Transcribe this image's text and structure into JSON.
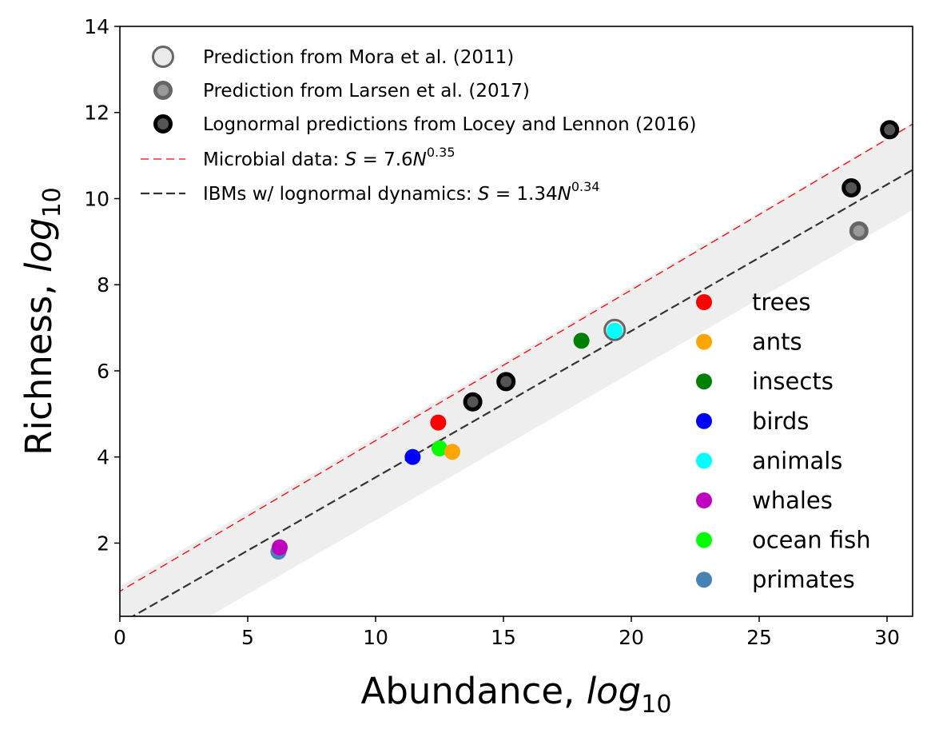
{
  "chart_data": {
    "type": "scatter",
    "xlabel": "Abundance, ",
    "xlabel_italic": "log",
    "xlabel_sub": "10",
    "ylabel": "Richness, ",
    "ylabel_italic": "log",
    "ylabel_sub": "10",
    "xlim": [
      0,
      31
    ],
    "ylim": [
      0.3,
      14
    ],
    "xticks": [
      0,
      5,
      10,
      15,
      20,
      25,
      30
    ],
    "yticks": [
      2,
      4,
      6,
      8,
      10,
      12,
      14
    ],
    "grid": false,
    "band": {
      "color": "#eeeeee",
      "upper_x0_y": 1.0,
      "upper_slope": 0.347,
      "lower_x0_y": -0.9,
      "lower_slope": 0.343
    },
    "lines": [
      {
        "key": "microbial",
        "legend_label": "Microbial data: ",
        "formula_S": "S",
        "formula_eq": " = 7.6",
        "formula_N": "N",
        "formula_exp": "0.35",
        "intercept": 0.88,
        "slope": 0.35,
        "color": "#ff0000",
        "dash": "10,6",
        "width": 1.3
      },
      {
        "key": "ibm",
        "legend_label": "IBMs w/ lognormal dynamics: ",
        "formula_S": "S",
        "formula_eq": " = 1.34",
        "formula_N": "N",
        "formula_exp": "0.34",
        "intercept": 0.127,
        "slope": 0.34,
        "color": "#333333",
        "dash": "11,5",
        "width": 2.2
      }
    ],
    "prediction_series": [
      {
        "name": "Prediction from Mora et al. (2011)",
        "fill": "#eaeaea",
        "stroke": "#666666",
        "r": 12.5,
        "stroke_width": 3,
        "points": [
          {
            "x": 19.35,
            "y": 6.95
          }
        ]
      },
      {
        "name": "Prediction from Larsen et al. (2017)",
        "fill": "#999999",
        "stroke": "#666666",
        "r": 9.5,
        "stroke_width": 5,
        "points": [
          {
            "x": 28.9,
            "y": 9.25
          }
        ]
      },
      {
        "name": "Lognormal predictions from Locey and Lennon (2016)",
        "fill": "#555555",
        "stroke": "#000000",
        "r": 9.5,
        "stroke_width": 5,
        "points": [
          {
            "x": 13.8,
            "y": 5.28
          },
          {
            "x": 15.1,
            "y": 5.75
          },
          {
            "x": 28.6,
            "y": 10.25
          },
          {
            "x": 30.1,
            "y": 11.6
          }
        ]
      }
    ],
    "taxa_series": [
      {
        "name": "trees",
        "color": "#ff0000",
        "points": [
          {
            "x": 12.45,
            "y": 4.8
          }
        ]
      },
      {
        "name": "ants",
        "color": "#ffa500",
        "points": [
          {
            "x": 13.0,
            "y": 4.12
          }
        ]
      },
      {
        "name": "insects",
        "color": "#008000",
        "points": [
          {
            "x": 18.05,
            "y": 6.7
          }
        ]
      },
      {
        "name": "birds",
        "color": "#0000ff",
        "points": [
          {
            "x": 11.45,
            "y": 4.0
          }
        ]
      },
      {
        "name": "animals",
        "color": "#00ffff",
        "points": [
          {
            "x": 19.35,
            "y": 6.93
          }
        ]
      },
      {
        "name": "whales",
        "color": "#bf00bf",
        "points": [
          {
            "x": 6.25,
            "y": 1.9
          }
        ]
      },
      {
        "name": "ocean fish",
        "color": "#00ff00",
        "points": [
          {
            "x": 12.5,
            "y": 4.2
          }
        ]
      },
      {
        "name": "primates",
        "color": "#4682b4",
        "points": [
          {
            "x": 6.2,
            "y": 1.8
          }
        ]
      }
    ]
  }
}
